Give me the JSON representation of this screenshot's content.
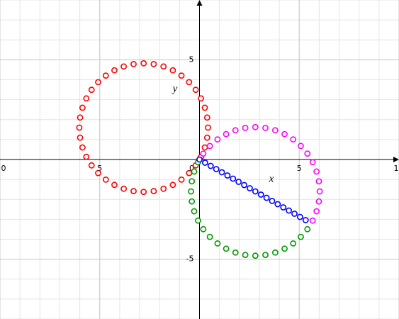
{
  "chart_data": {
    "type": "scatter",
    "xlabel": "x",
    "ylabel": "y",
    "xlim": [
      -10,
      10
    ],
    "ylim": [
      -8,
      8
    ],
    "xticks": [
      {
        "value": -10,
        "label": "0"
      },
      {
        "value": -5,
        "label": "5"
      },
      0,
      5,
      {
        "value": 10,
        "label": "1"
      }
    ],
    "yticks": [
      5,
      -5
    ],
    "grid": true,
    "series": [
      {
        "name": "red",
        "color": "#ff0000",
        "x": [
          0.425,
          0.385,
          0.267,
          0.073,
          -0.191,
          -0.52,
          -0.904,
          -1.336,
          -1.803,
          -2.296,
          -2.8,
          -3.304,
          -3.797,
          -4.264,
          -4.696,
          -5.08,
          -5.409,
          -5.673,
          -5.867,
          -5.985,
          -6.025,
          -5.985,
          -5.867,
          -5.673,
          -5.409,
          -5.08,
          -4.696,
          -4.264,
          -3.797,
          -3.304,
          -2.8,
          -2.296,
          -1.803,
          -1.336,
          -0.904,
          -0.52,
          -0.191,
          0.073,
          0.267,
          0.385
        ],
        "y": [
          1.6,
          2.104,
          2.597,
          3.064,
          3.496,
          3.88,
          4.209,
          4.473,
          4.667,
          4.785,
          4.825,
          4.785,
          4.667,
          4.473,
          4.209,
          3.88,
          3.496,
          3.064,
          2.597,
          2.104,
          1.6,
          1.096,
          0.603,
          0.136,
          -0.296,
          -0.68,
          -1.009,
          -1.273,
          -1.467,
          -1.585,
          -1.625,
          -1.585,
          -1.467,
          -1.273,
          -1.009,
          -0.68,
          -0.296,
          0.136,
          0.603,
          1.096
        ]
      },
      {
        "name": "magenta",
        "color": "#ff00ff",
        "x": [
          0.191,
          0.52,
          0.904,
          1.336,
          1.803,
          2.296,
          2.8,
          3.304,
          3.797,
          4.264,
          4.696,
          5.08,
          5.409,
          5.673,
          5.867,
          5.985,
          6.025,
          5.985,
          5.867,
          5.673
        ],
        "y": [
          0.296,
          0.68,
          1.009,
          1.273,
          1.467,
          1.585,
          1.625,
          1.585,
          1.467,
          1.273,
          1.009,
          0.68,
          0.296,
          -0.136,
          -0.603,
          -1.096,
          -1.6,
          -2.104,
          -2.597,
          -3.064
        ]
      },
      {
        "name": "green",
        "color": "#009900",
        "x": [
          -0.073,
          -0.267,
          -0.385,
          -0.425,
          -0.385,
          -0.267,
          -0.073,
          0.191,
          0.52,
          0.904,
          1.336,
          1.803,
          2.296,
          2.8,
          3.304,
          3.797,
          4.264,
          4.696,
          5.08,
          5.409
        ],
        "y": [
          -0.136,
          -0.603,
          -1.096,
          -1.6,
          -2.104,
          -2.597,
          -3.064,
          -3.496,
          -3.88,
          -4.209,
          -4.473,
          -4.667,
          -4.785,
          -4.825,
          -4.785,
          -4.667,
          -4.473,
          -4.209,
          -3.88,
          -3.496
        ]
      },
      {
        "name": "blue",
        "color": "#0000ff",
        "x": [
          0,
          0.28,
          0.56,
          0.84,
          1.12,
          1.4,
          1.68,
          1.96,
          2.24,
          2.52,
          2.8,
          3.08,
          3.36,
          3.64,
          3.92,
          4.2,
          4.48,
          4.76,
          5.04,
          5.32
        ],
        "y": [
          0,
          -0.16,
          -0.32,
          -0.48,
          -0.64,
          -0.8,
          -0.96,
          -1.12,
          -1.28,
          -1.44,
          -1.6,
          -1.76,
          -1.92,
          -2.08,
          -2.24,
          -2.4,
          -2.56,
          -2.72,
          -2.88,
          -3.04
        ]
      }
    ]
  }
}
